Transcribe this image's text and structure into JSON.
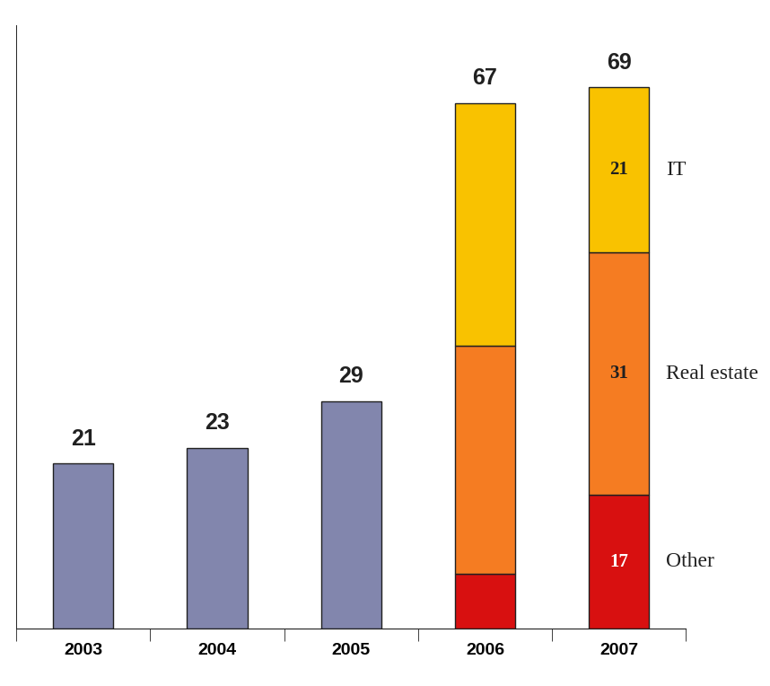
{
  "chart_data": {
    "type": "bar",
    "stacked": true,
    "categories": [
      "2003",
      "2004",
      "2005",
      "2006",
      "2007"
    ],
    "series": [
      {
        "color": "#8286ad",
        "values": [
          21,
          23,
          29,
          null,
          null
        ]
      },
      {
        "name": "Other",
        "color": "#d81010",
        "values": [
          null,
          null,
          null,
          7,
          17
        ],
        "value_labels": [
          null,
          null,
          null,
          null,
          "17"
        ]
      },
      {
        "name": "Real estate",
        "color": "#f57c22",
        "values": [
          null,
          null,
          null,
          29,
          31
        ],
        "value_labels": [
          null,
          null,
          null,
          null,
          "31"
        ]
      },
      {
        "name": "IT",
        "color": "#f9c200",
        "values": [
          null,
          null,
          null,
          31,
          21
        ],
        "value_labels": [
          null,
          null,
          null,
          null,
          "21"
        ]
      }
    ],
    "totals": [
      21,
      23,
      29,
      67,
      69
    ],
    "ylim": [
      0,
      77
    ],
    "yticks": [],
    "tick_labels": "x",
    "grid": false
  }
}
